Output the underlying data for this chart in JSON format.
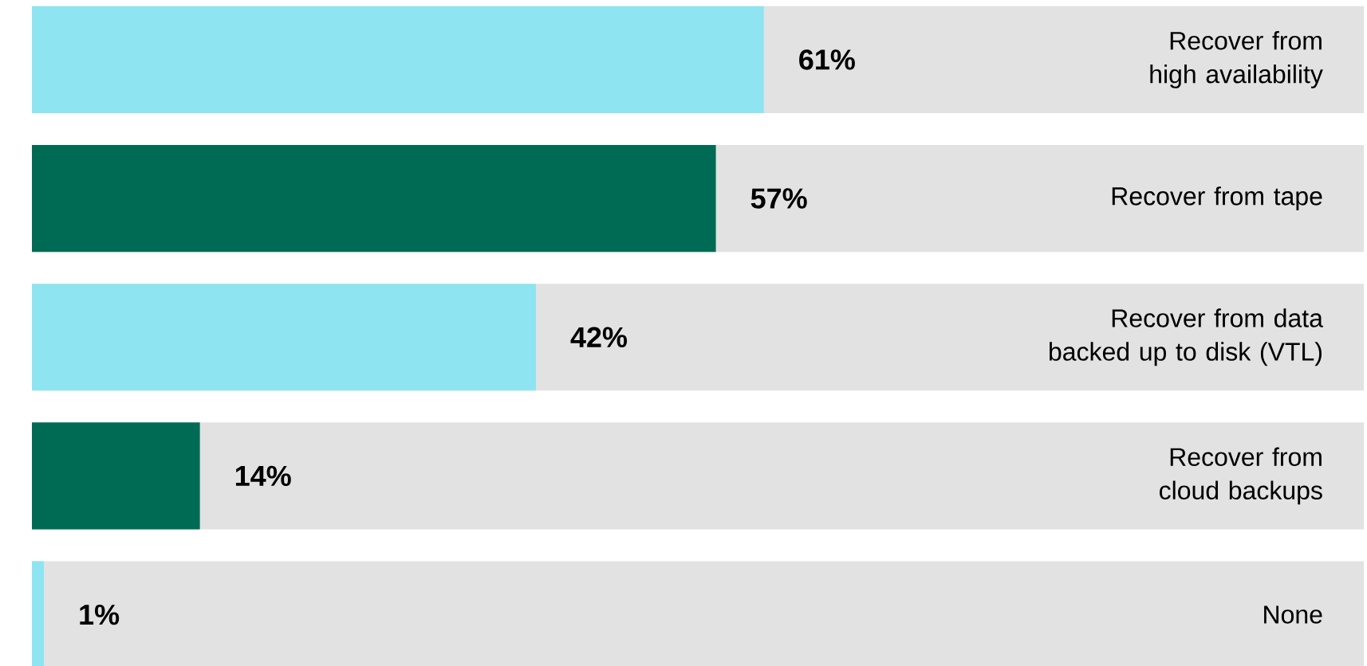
{
  "chart_data": {
    "type": "bar",
    "orientation": "horizontal",
    "categories": [
      "Recover from high availability",
      "Recover from tape",
      "Recover from data backed up to disk (VTL)",
      "Recover from cloud backups",
      "None"
    ],
    "values": [
      61,
      57,
      42,
      14,
      1
    ],
    "value_labels": [
      "61%",
      "57%",
      "42%",
      "14%",
      "1%"
    ],
    "colors": [
      "#8ee4f1",
      "#006b54",
      "#8ee4f1",
      "#006b54",
      "#8ee4f1"
    ],
    "xlim": [
      0,
      111
    ]
  }
}
